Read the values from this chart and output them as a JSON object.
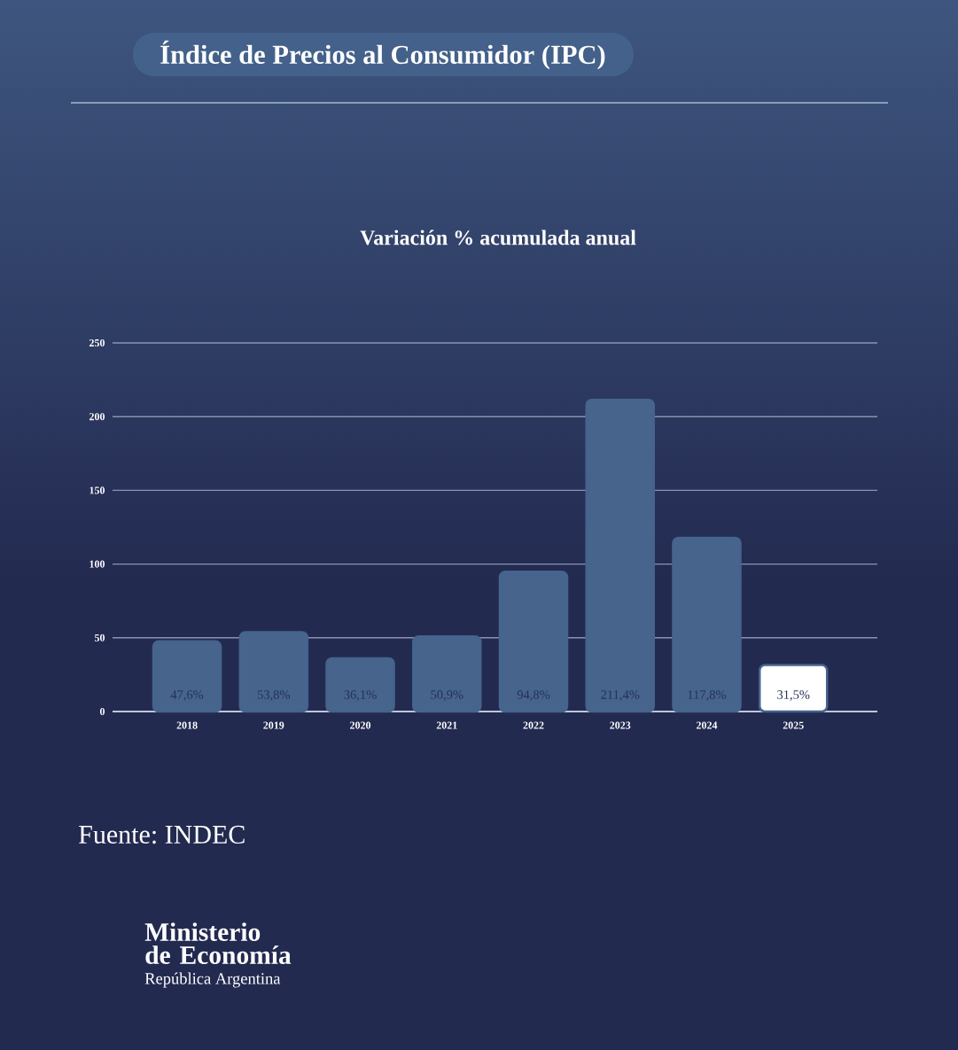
{
  "chart_data": {
    "type": "bar",
    "title": "Índice de Precios al Consumidor (IPC)",
    "subtitle": "Variación % acumulada anual",
    "categories": [
      "2018",
      "2019",
      "2020",
      "2021",
      "2022",
      "2023",
      "2024",
      "2025"
    ],
    "values": [
      47.6,
      53.8,
      36.1,
      50.9,
      94.8,
      211.4,
      117.8,
      31.5
    ],
    "value_labels": [
      "47,6%",
      "53,8%",
      "36,1%",
      "50,9%",
      "94,8%",
      "211,4%",
      "117,8%",
      "31,5%"
    ],
    "color": "#46648c",
    "colors": [
      "#46648c",
      "#46648c",
      "#46648c",
      "#46648c",
      "#46648c",
      "#46648c",
      "#46648c",
      "#ffffff"
    ],
    "ylim": [
      0,
      250
    ],
    "yticks": [
      0,
      50,
      100,
      150,
      200,
      250
    ],
    "grid": "y",
    "annotations": [
      "Fuente: INDEC",
      "Ministerio de Economía",
      "República Argentina"
    ]
  }
}
